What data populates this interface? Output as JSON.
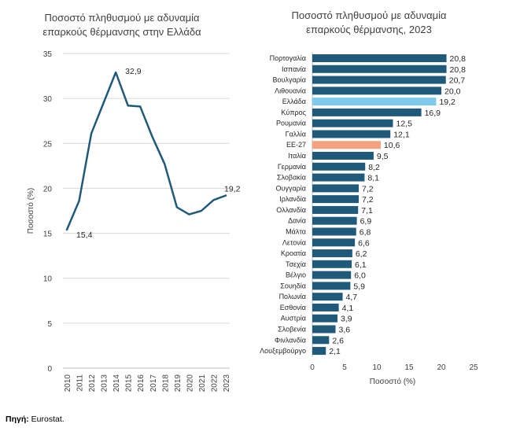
{
  "colors": {
    "line": "#1f5a7a",
    "bar": "#1f5a7a",
    "highlight_greece": "#7ecbee",
    "highlight_eu": "#f4a17f",
    "grid": "#d9d9d9",
    "axis": "#bfbfbf"
  },
  "source": {
    "label": "Πηγή:",
    "text": " Eurostat."
  },
  "chart_data": [
    {
      "type": "line",
      "title_lines": [
        "Ποσοστό πληθυσμού με αδυναμία",
        "επαρκούς θέρμανσης στην Ελλάδα"
      ],
      "xlabel": "",
      "ylabel": "Ποσοστό (%)",
      "x": [
        2010,
        2011,
        2012,
        2013,
        2014,
        2015,
        2016,
        2017,
        2018,
        2019,
        2020,
        2021,
        2022,
        2023
      ],
      "values": [
        15.4,
        18.6,
        26.1,
        29.5,
        32.9,
        29.2,
        29.1,
        25.7,
        22.7,
        17.9,
        17.1,
        17.5,
        18.7,
        19.2
      ],
      "ylim": [
        0,
        35
      ],
      "yticks": [
        0,
        5,
        10,
        15,
        20,
        25,
        30,
        35
      ],
      "grid": true,
      "data_labels": [
        {
          "index": 0,
          "text": "15,4"
        },
        {
          "index": 4,
          "text": "32,9"
        },
        {
          "index": 13,
          "text": "19,2"
        }
      ]
    },
    {
      "type": "bar",
      "orientation": "horizontal",
      "title_lines": [
        "Ποσοστό πληθυσμού με αδυναμία",
        "επαρκούς θέρμανσης, 2023"
      ],
      "xlabel": "Ποσοστό (%)",
      "xlim": [
        0,
        25
      ],
      "xticks": [
        0,
        5,
        10,
        15,
        20,
        25
      ],
      "grid": false,
      "categories": [
        "Πορτογαλία",
        "Ισπανία",
        "Βουλγαρία",
        "Λιθουανία",
        "Ελλάδα",
        "Κύπρος",
        "Ρουμανία",
        "Γαλλία",
        "ΕΕ-27",
        "Ιταλία",
        "Γερμανία",
        "Σλοβακία",
        "Ουγγαρία",
        "Ιρλανδία",
        "Ολλανδία",
        "Δανία",
        "Μάλτα",
        "Λετονία",
        "Κροατία",
        "Τσεχία",
        "Βέλγιο",
        "Σουηδία",
        "Πολωνία",
        "Εσθονία",
        "Αυστρία",
        "Σλοβενία",
        "Φινλανδία",
        "Λουξεμβούργο"
      ],
      "values": [
        20.8,
        20.8,
        20.7,
        20.0,
        19.2,
        16.9,
        12.5,
        12.1,
        10.6,
        9.5,
        8.2,
        8.1,
        7.2,
        7.2,
        7.1,
        6.9,
        6.8,
        6.6,
        6.2,
        6.1,
        6.0,
        5.9,
        4.7,
        4.1,
        3.9,
        3.6,
        2.6,
        2.1
      ],
      "value_labels": [
        "20,8",
        "20,8",
        "20,7",
        "20,0",
        "19,2",
        "16,9",
        "12,5",
        "12,1",
        "10,6",
        "9,5",
        "8,2",
        "8,1",
        "7,2",
        "7,2",
        "7,1",
        "6,9",
        "6,8",
        "6,6",
        "6,2",
        "6,1",
        "6,0",
        "5,9",
        "4,7",
        "4,1",
        "3,9",
        "3,6",
        "2,6",
        "2,1"
      ],
      "highlights": {
        "Ελλάδα": "highlight_greece",
        "ΕΕ-27": "highlight_eu"
      }
    }
  ]
}
